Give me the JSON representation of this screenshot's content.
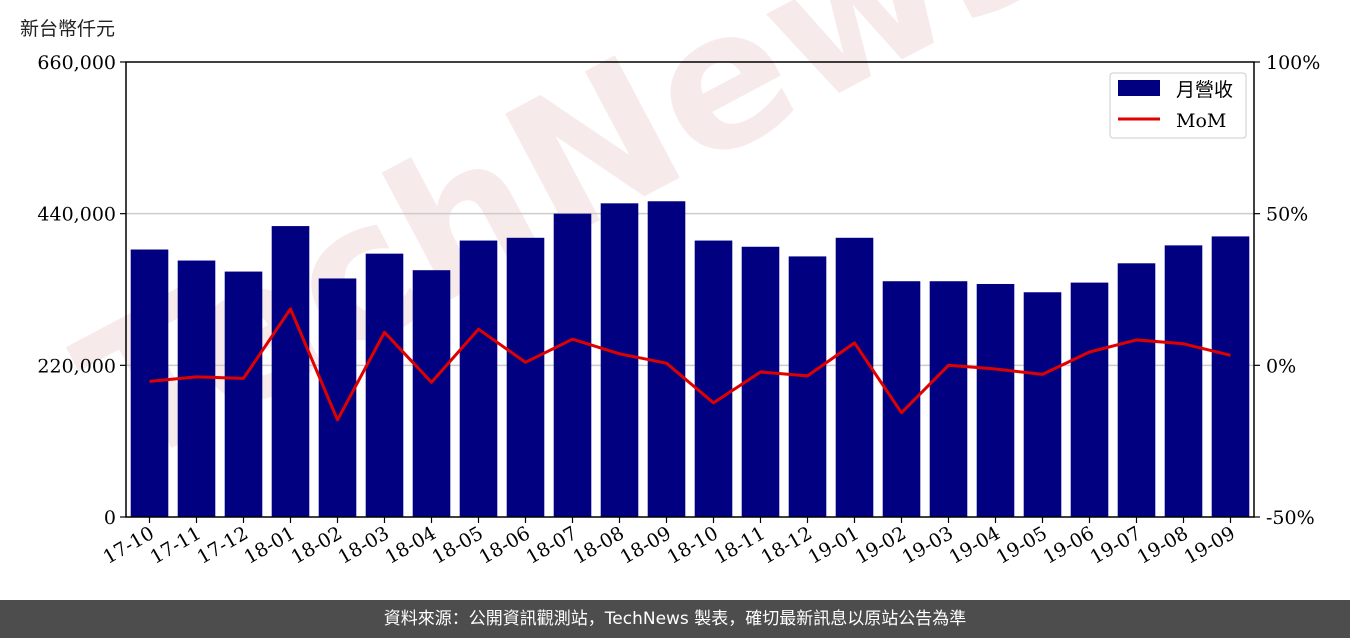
{
  "unit_label": "新台幣仟元",
  "footer_text": "資料來源：公開資訊觀測站，TechNews 製表，確切最新訊息以原站公告為準",
  "watermark_text": "TechNews",
  "colors": {
    "bar": "#000080",
    "line": "#e00000",
    "grid": "#cccccc",
    "footer_bg": "#4d4d4d"
  },
  "chart_data": {
    "type": "bar",
    "categories": [
      "17-10",
      "17-11",
      "17-12",
      "18-01",
      "18-02",
      "18-03",
      "18-04",
      "18-05",
      "18-06",
      "18-07",
      "18-08",
      "18-09",
      "18-10",
      "18-11",
      "18-12",
      "19-01",
      "19-02",
      "19-03",
      "19-04",
      "19-05",
      "19-06",
      "19-07",
      "19-08",
      "19-09"
    ],
    "series": [
      {
        "name": "月營收",
        "type": "bar",
        "axis": "left",
        "values": [
          388000,
          372000,
          356000,
          422000,
          346000,
          382000,
          358000,
          401000,
          405000,
          440000,
          455000,
          458000,
          401000,
          392000,
          378000,
          405000,
          342000,
          342000,
          338000,
          326000,
          340000,
          368000,
          394000,
          407000
        ]
      },
      {
        "name": "MoM",
        "type": "line",
        "axis": "right",
        "values": [
          -5.3,
          -3.8,
          -4.3,
          18.6,
          -18.0,
          10.9,
          -5.6,
          11.9,
          1.0,
          8.6,
          3.8,
          0.7,
          -12.4,
          -2.2,
          -3.5,
          7.4,
          -15.6,
          0.0,
          -1.2,
          -3.0,
          4.4,
          8.4,
          7.1,
          3.3
        ]
      }
    ],
    "y_left": {
      "ylim": [
        0,
        660000
      ],
      "ticks": [
        "0",
        "220,000",
        "440,000",
        "660,000"
      ],
      "tick_values": [
        0,
        220000,
        440000,
        660000
      ]
    },
    "y_right": {
      "ylim": [
        -50,
        100
      ],
      "ticks": [
        "-50%",
        "0%",
        "50%",
        "100%"
      ],
      "tick_values": [
        -50,
        0,
        50,
        100
      ]
    },
    "grid": "horizontal",
    "legend_position": "top-right"
  }
}
